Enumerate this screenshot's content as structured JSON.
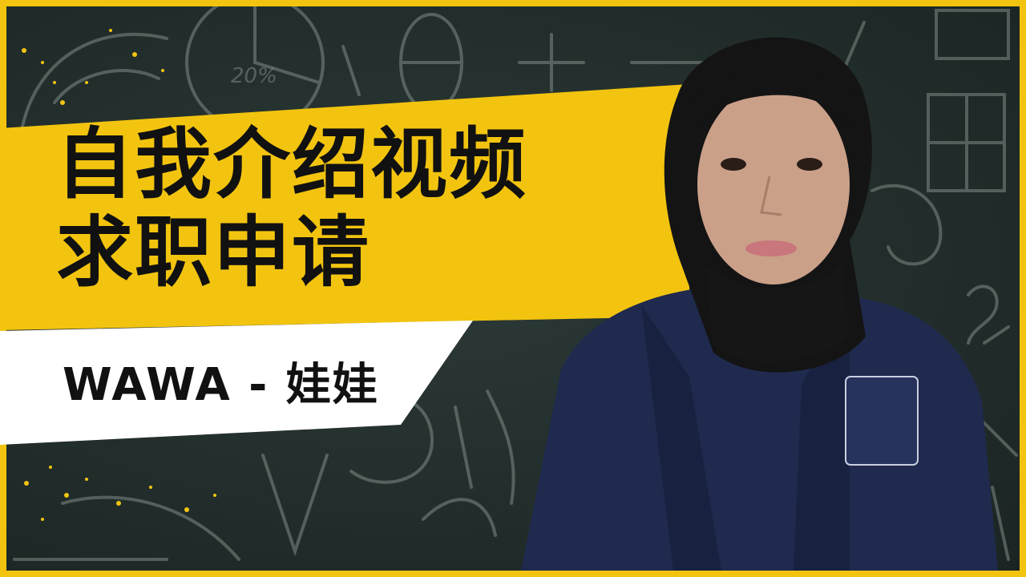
{
  "thumbnail": {
    "title_line1": "自我介绍视频",
    "title_line2": "求职申请",
    "name": "WAWA - 娃娃"
  },
  "colors": {
    "frame": "#f2c40f",
    "chalkboard": "#26312f",
    "banner_yellow": "#f2c40f",
    "banner_white": "#ffffff",
    "text": "#111111",
    "jacket": "#1f2a4e",
    "hijab": "#141414"
  },
  "icons": {
    "background": "chalkboard-math-doodles",
    "photo": "person-portrait"
  }
}
